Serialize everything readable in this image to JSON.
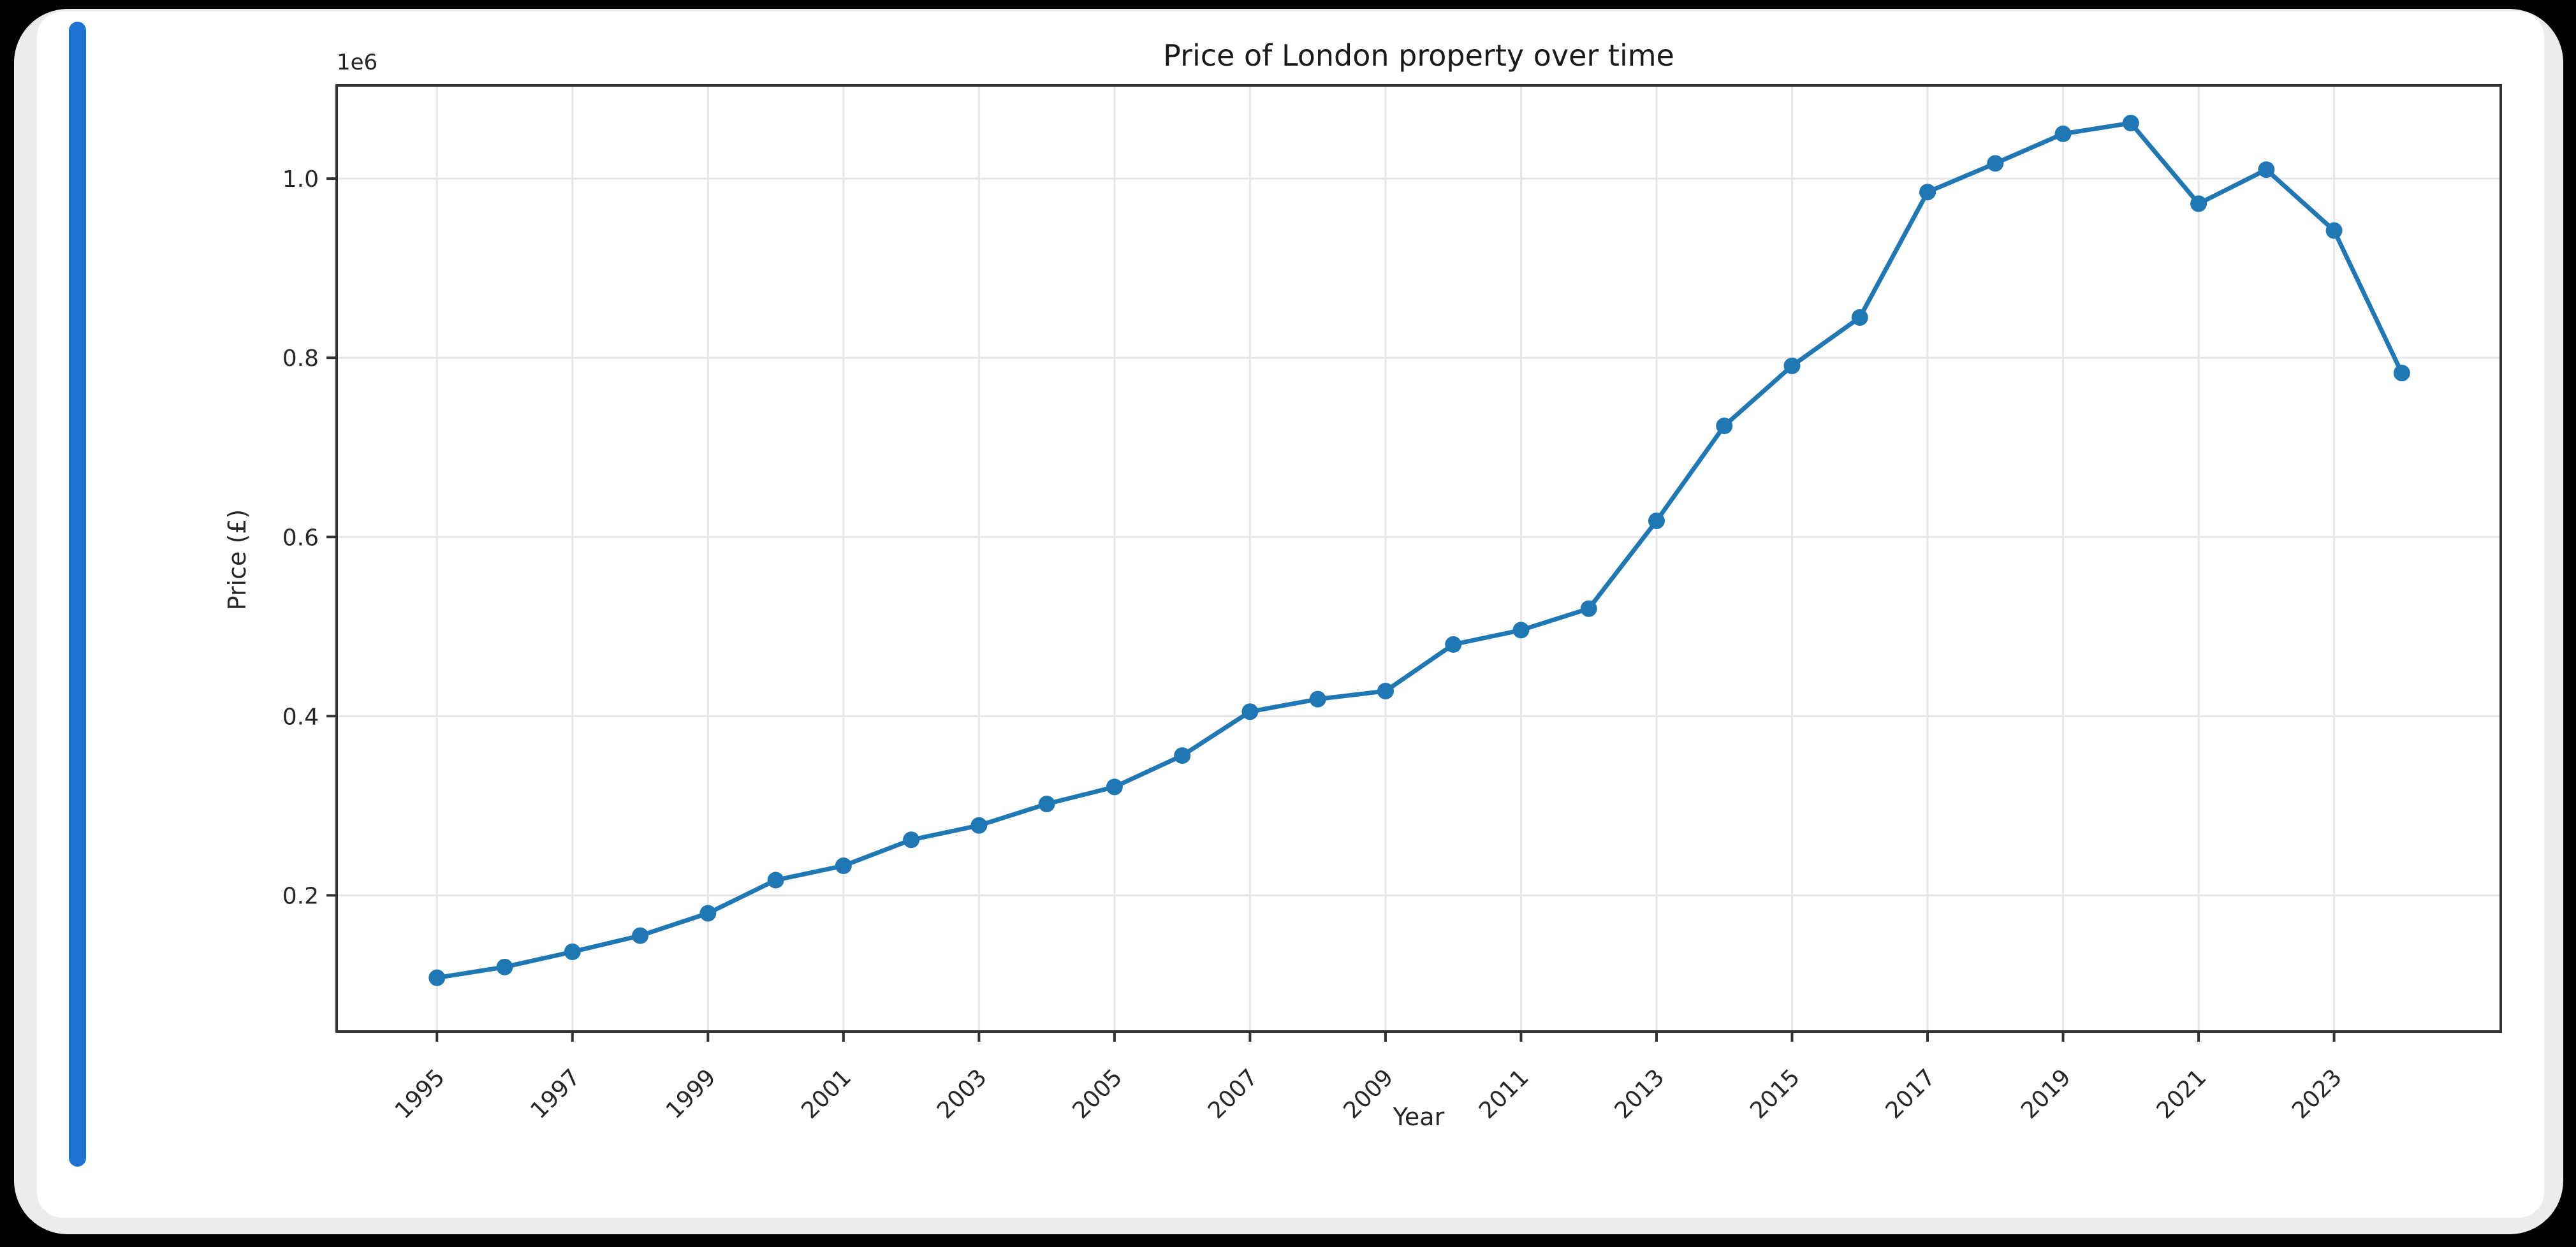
{
  "frame": {
    "background_color": "#000000",
    "card_color": "#ffffff",
    "card_shadow_color": "#ececec",
    "scrollbar_color": "#1e73d2"
  },
  "chart_data": {
    "type": "line",
    "title": "Price of London property over time",
    "xlabel": "Year",
    "ylabel": "Price (£)",
    "y_offset_label": "1e6",
    "x": [
      1995,
      1996,
      1997,
      1998,
      1999,
      2000,
      2001,
      2002,
      2003,
      2004,
      2005,
      2006,
      2007,
      2008,
      2009,
      2010,
      2011,
      2012,
      2013,
      2014,
      2015,
      2016,
      2017,
      2018,
      2019,
      2020,
      2021,
      2022,
      2023,
      2024
    ],
    "values": [
      108000,
      120000,
      137000,
      155000,
      180000,
      217000,
      233000,
      262000,
      278000,
      302000,
      321000,
      356000,
      405000,
      419000,
      428000,
      480000,
      496000,
      520000,
      618000,
      724000,
      791000,
      845000,
      985000,
      1017000,
      1050000,
      1062000,
      972000,
      1010000,
      942000,
      783000
    ],
    "x_tick_values": [
      1995,
      1997,
      1999,
      2001,
      2003,
      2005,
      2007,
      2009,
      2011,
      2013,
      2015,
      2017,
      2019,
      2021,
      2023
    ],
    "x_tick_labels": [
      "1995",
      "1997",
      "1999",
      "2001",
      "2003",
      "2005",
      "2007",
      "2009",
      "2011",
      "2013",
      "2015",
      "2017",
      "2019",
      "2021",
      "2023"
    ],
    "y_tick_values": [
      200000,
      400000,
      600000,
      800000,
      1000000
    ],
    "y_tick_labels": [
      "0.2",
      "0.4",
      "0.6",
      "0.8",
      "1.0"
    ],
    "xlim": [
      1993.52,
      2025.46
    ],
    "ylim": [
      48000,
      1104000
    ],
    "grid": true,
    "legend": "none",
    "line_color": "#1f77b4",
    "marker": "circle",
    "grid_color": "#e6e6e6",
    "spine_color": "#333333",
    "tick_label_color": "#262626"
  }
}
